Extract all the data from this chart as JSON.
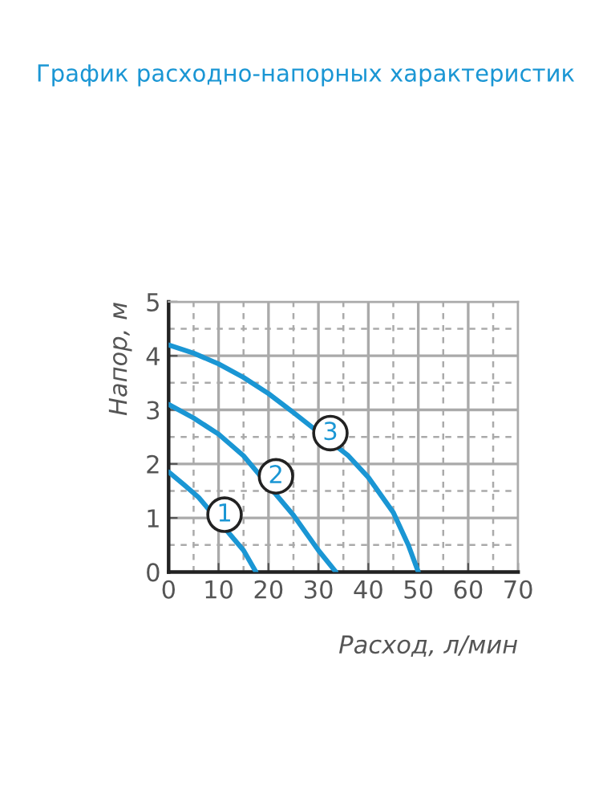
{
  "chart_data": {
    "type": "line",
    "title": "График расходно-напорных характеристик",
    "xlabel": "Расход, л/мин",
    "ylabel": "Напор, м",
    "xlim": [
      0,
      70
    ],
    "xticks": [
      0,
      10,
      20,
      30,
      40,
      50,
      60,
      70
    ],
    "ylim": [
      0,
      5
    ],
    "yticks": [
      0,
      1,
      2,
      3,
      4,
      5
    ],
    "grid": true,
    "series": [
      {
        "color": "#1a96d4",
        "x": [
          0,
          3,
          6,
          15,
          17.5
        ],
        "values": [
          1.85,
          1.62,
          1.38,
          0.4,
          0
        ]
      },
      {
        "color": "#1a96d4",
        "x": [
          0,
          5,
          10,
          15,
          25,
          30,
          33.5
        ],
        "values": [
          3.1,
          2.85,
          2.55,
          2.15,
          1.05,
          0.4,
          0
        ]
      },
      {
        "color": "#1a96d4",
        "x": [
          0,
          5,
          10,
          15,
          20,
          25,
          36,
          40,
          45,
          48,
          50
        ],
        "values": [
          4.2,
          4.05,
          3.85,
          3.6,
          3.3,
          2.95,
          2.15,
          1.75,
          1.1,
          0.5,
          0
        ]
      }
    ],
    "annotations": [
      {
        "text": "1",
        "x": 11.2,
        "y": 1.06
      },
      {
        "text": "2",
        "x": 21.5,
        "y": 1.77
      },
      {
        "text": "3",
        "x": 32.4,
        "y": 2.57
      }
    ]
  }
}
